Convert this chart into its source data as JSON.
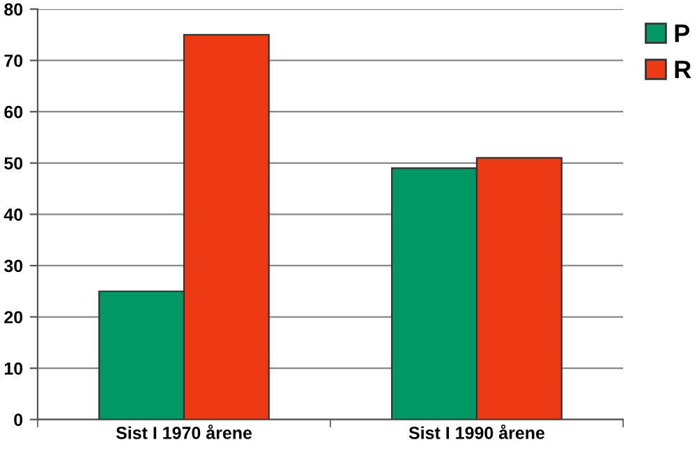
{
  "chart_data": {
    "type": "bar",
    "categories": [
      "Sist I 1970 årene",
      "Sist I 1990 årene"
    ],
    "series": [
      {
        "name": "P",
        "color": "#009966",
        "values": [
          25,
          49
        ]
      },
      {
        "name": "R",
        "color": "#ee3a14",
        "values": [
          75,
          51
        ]
      }
    ],
    "ylim": [
      0,
      80
    ],
    "yticks": [
      0,
      10,
      20,
      30,
      40,
      50,
      60,
      70,
      80
    ],
    "grid": "y",
    "legend": "top right"
  }
}
